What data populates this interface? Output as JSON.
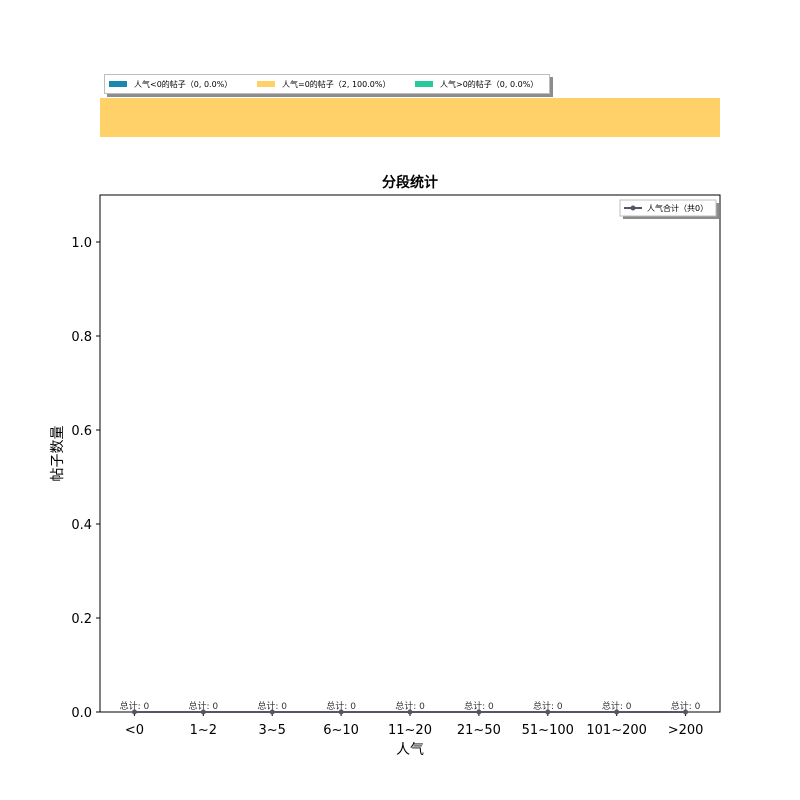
{
  "colors": {
    "neg": "#1a87ac",
    "zero": "#ffd168",
    "pos": "#25c99b",
    "line": "#555566"
  },
  "top_legend": [
    {
      "label": "人气<0的帖子（0, 0.0%）",
      "color_key": "neg",
      "count": 0,
      "pct": 0.0
    },
    {
      "label": "人气=0的帖子（2, 100.0%）",
      "color_key": "zero",
      "count": 2,
      "pct": 100.0
    },
    {
      "label": "人气>0的帖子（0, 0.0%）",
      "color_key": "pos",
      "count": 0,
      "pct": 0.0
    }
  ],
  "chart_data": {
    "type": "line",
    "title": "分段统计",
    "xlabel": "人气",
    "ylabel": "帖子数量",
    "categories": [
      "<0",
      "1~2",
      "3~5",
      "6~10",
      "11~20",
      "21~50",
      "51~100",
      "101~200",
      ">200"
    ],
    "series": [
      {
        "name": "人气合计（共0）",
        "values": [
          0,
          0,
          0,
          0,
          0,
          0,
          0,
          0,
          0
        ]
      }
    ],
    "point_labels": [
      "总计: 0",
      "总计: 0",
      "总计: 0",
      "总计: 0",
      "总计: 0",
      "总计: 0",
      "总计: 0",
      "总计: 0",
      "总计: 0"
    ],
    "ylim": [
      0,
      1.1
    ],
    "yticks": [
      "0.0",
      "0.2",
      "0.4",
      "0.6",
      "0.8",
      "1.0"
    ],
    "legend_position": "upper right",
    "grid": false
  }
}
